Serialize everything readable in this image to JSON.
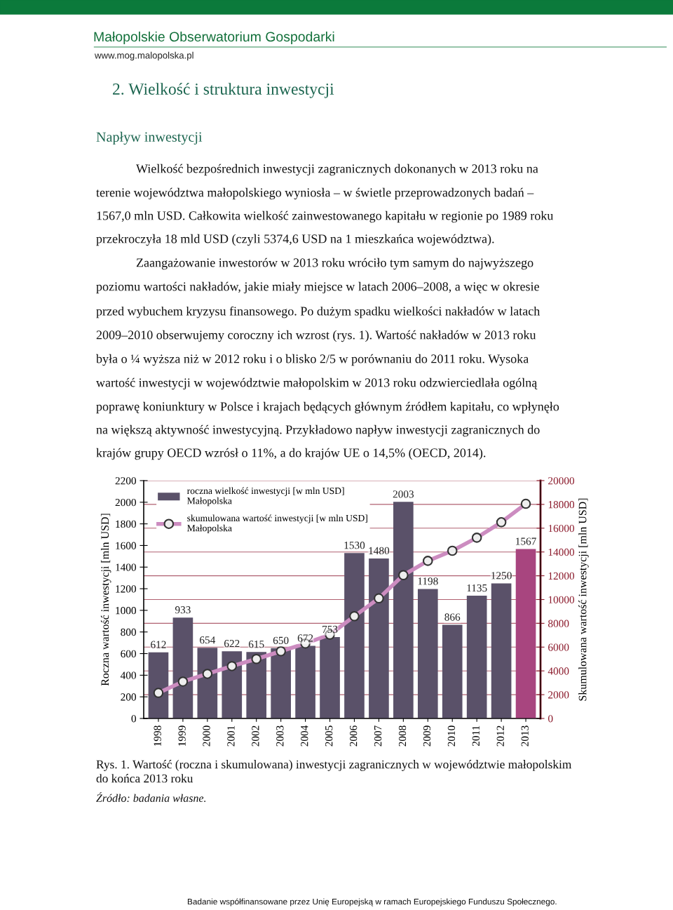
{
  "chart_data": {
    "type": "bar",
    "categories": [
      "1998",
      "1999",
      "2000",
      "2001",
      "2002",
      "2003",
      "2004",
      "2005",
      "2006",
      "2007",
      "2008",
      "2009",
      "2010",
      "2011",
      "2012",
      "2013"
    ],
    "series": [
      {
        "name": "roczna wielkość inwestycji [w mln USD]\nMałopolska",
        "colors": [
          "#5a5169",
          "#5a5169",
          "#5a5169",
          "#5a5169",
          "#5a5169",
          "#5a5169",
          "#5a5169",
          "#5a5169",
          "#5a5169",
          "#5a5169",
          "#5a5169",
          "#5a5169",
          "#5a5169",
          "#5a5169",
          "#5a5169",
          "#a8457f"
        ],
        "values": [
          612,
          933,
          654,
          622,
          615,
          650,
          672,
          753,
          1530,
          1480,
          2003,
          1198,
          866,
          1135,
          1250,
          1567
        ],
        "value_labels": [
          "612",
          "933",
          "654",
          "622",
          "615",
          "650",
          "672",
          "753",
          "1530",
          "1480",
          "2003",
          "1198",
          "866",
          "1135",
          "1250",
          "1567"
        ]
      },
      {
        "name": "skumulowana wartość inwestycji [w mln USD]\nMałopolska",
        "type": "line",
        "axis": "y2",
        "color": "#cc8cc0",
        "values": [
          2150,
          3100,
          3750,
          4400,
          5000,
          5650,
          6300,
          7050,
          8600,
          10100,
          12050,
          13250,
          14100,
          15200,
          16500,
          18050
        ]
      }
    ],
    "ylabel": "Roczna wartość inwestycji [mln USD]",
    "y2label": "Skumulowana wartość inwestycji [mln USD]",
    "ylim": [
      0,
      2200
    ],
    "yticks": [
      0,
      200,
      400,
      600,
      800,
      1000,
      1200,
      1400,
      1600,
      1800,
      2000,
      2200
    ],
    "y2lim": [
      0,
      20000
    ],
    "y2ticks": [
      0,
      2000,
      4000,
      6000,
      8000,
      10000,
      12000,
      14000,
      16000,
      18000,
      20000
    ],
    "grid": "y2",
    "legend": "top left",
    "marker": "circle",
    "line_style": "solid",
    "annotations": [
      "Małopolskie Obserwatorium Gospodarki",
      "www.mog.malopolska.pl",
      "2. Wielkość i struktura inwestycji",
      "Napływ inwestycji",
      "Wielkość bezpośrednich inwestycji zagranicznych dokonanych w 2013 roku na",
      "terenie województwa małopolskiego wyniosła – w świetle przeprowadzonych badań –",
      "1567,0 mln USD. Całkowita wielkość zainwestowanego kapitału w regionie po 1989 roku",
      "przekroczyła 18 mld USD (czyli 5374,6 USD na 1 mieszkańca województwa).",
      "Zaangażowanie inwestorów w 2013 roku wróciło tym samym do najwyższego",
      "poziomu wartości nakładów, jakie miały miejsce w latach 2006–2008, a więc w okresie",
      "przed wybuchem kryzysu finansowego. Po dużym spadku wielkości nakładów w latach",
      "2009–2010 obserwujemy coroczny ich wzrost (rys. 1). Wartość nakładów w 2013 roku",
      "była o ¼ wyższa niż w 2012 roku i o blisko 2/5 w porównaniu do 2011 roku. Wysoka",
      "wartość inwestycji w województwie małopolskim w 2013 roku odzwierciedlała ogólną",
      "poprawę koniunktury w Polsce i krajach będących głównym źródłem kapitału, co wpłynęło",
      "na większą aktywność inwestycyjną. Przykładowo napływ inwestycji zagranicznych do",
      "krajów grupy OECD wzrósł o 11%, a do krajów UE o 14,5% (OECD, 2014).",
      "Rys. 1. Wartość (roczna i skumulowana) inwestycji zagranicznych w województwie małopolskim",
      "do końca 2013 roku",
      "Źródło: badania własne.",
      "Badanie współfinansowane przez Unię Europejską w ramach Europejskiego Funduszu Społecznego."
    ]
  }
}
